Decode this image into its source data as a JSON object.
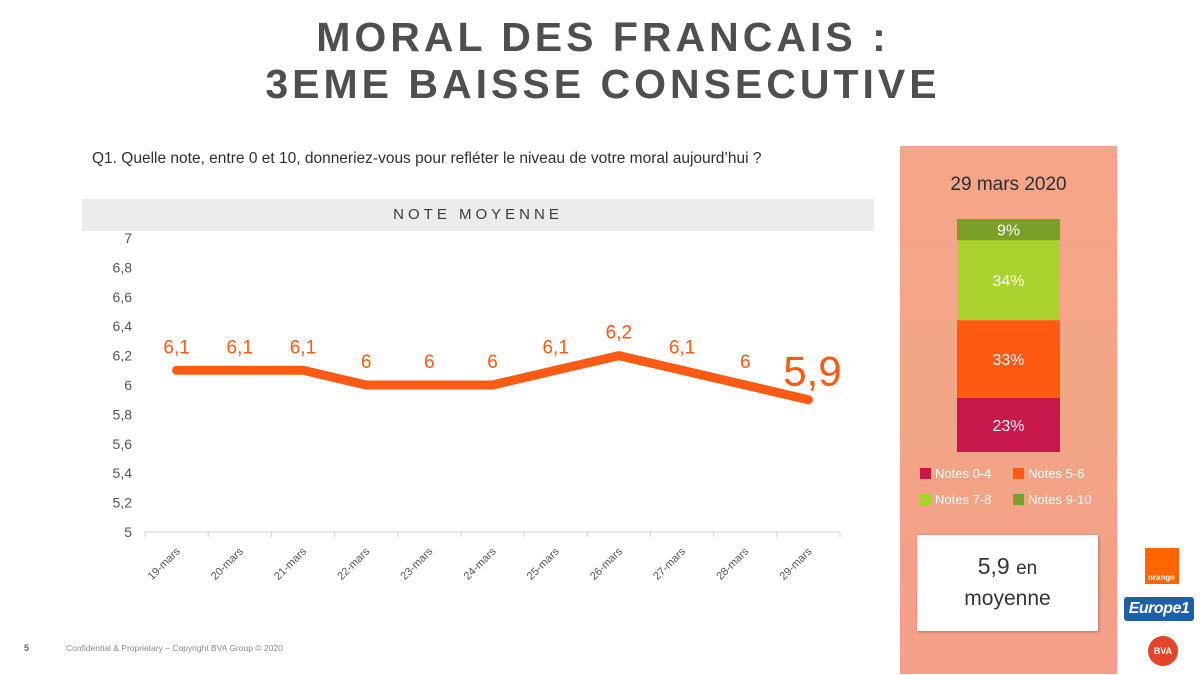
{
  "title": {
    "line1": "MORAL DES FRANCAIS :",
    "line2": "3EME BAISSE CONSECUTIVE"
  },
  "question": "Q1. Quelle note, entre 0 et 10, donneriez-vous pour refléter le niveau de votre moral aujourd’hui ?",
  "chart_header": "NOTE MOYENNE",
  "chart_data": [
    {
      "type": "line",
      "x": [
        "19-mars",
        "20-mars",
        "21-mars",
        "22-mars",
        "23-mars",
        "24-mars",
        "25-mars",
        "26-mars",
        "27-mars",
        "28-mars",
        "29-mars"
      ],
      "series": [
        {
          "values": [
            6.1,
            6.1,
            6.1,
            6,
            6,
            6,
            6.1,
            6.2,
            6.1,
            6,
            5.9
          ],
          "labels": [
            "6,1",
            "6,1",
            "6,1",
            "6",
            "6",
            "6",
            "6,1",
            "6,2",
            "6,1",
            "6",
            "5,9"
          ],
          "color": "#ff5a14"
        }
      ],
      "ylim": [
        5,
        7
      ],
      "yticks": [
        5,
        5.2,
        5.4,
        5.6,
        5.8,
        6,
        6.2,
        6.4,
        6.6,
        6.8,
        7
      ],
      "ytick_labels": [
        "5",
        "5,2",
        "5,4",
        "5,6",
        "5,8",
        "6",
        "6,2",
        "6,4",
        "6,6",
        "6,8",
        "7"
      ],
      "grid": false,
      "xlabel": "",
      "ylabel": "",
      "highlight_last_label": true
    },
    {
      "type": "bar",
      "stacked": true,
      "categories": [
        "29 mars 2020"
      ],
      "series": [
        {
          "name": "Notes 0-4",
          "values": [
            23
          ],
          "label": "23%",
          "color": "#c8174a"
        },
        {
          "name": "Notes 5-6",
          "values": [
            33
          ],
          "label": "33%",
          "color": "#ff5a14"
        },
        {
          "name": "Notes 7-8",
          "values": [
            34
          ],
          "label": "34%",
          "color": "#aad12d"
        },
        {
          "name": "Notes 9-10",
          "values": [
            9
          ],
          "label": "9%",
          "color": "#7aa02a"
        }
      ],
      "legend_position": "bottom"
    }
  ],
  "side_panel": {
    "date": "29 mars 2020",
    "avg_value": "5,9",
    "avg_suffix": "en",
    "avg_line2": "moyenne"
  },
  "footer": {
    "page": "5",
    "text": "Confidential & Proprietary – Copyright BVA Group © 2020"
  },
  "logos": {
    "orange": "orange",
    "europe1": "Europe1",
    "bva": "BVA"
  }
}
